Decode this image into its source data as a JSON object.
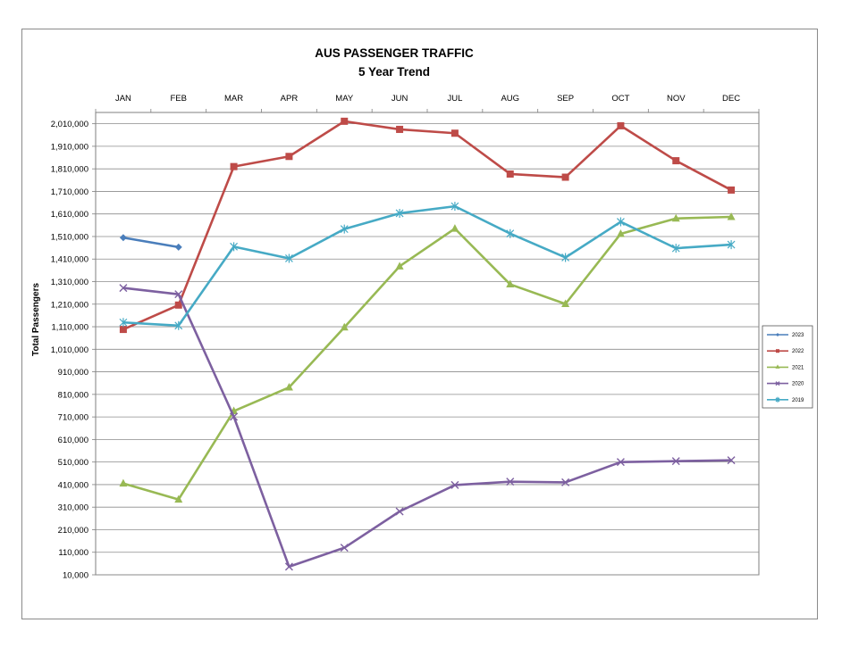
{
  "chart_data": {
    "type": "line",
    "title": "AUS PASSENGER TRAFFIC",
    "subtitle": "5 Year Trend",
    "xlabel": "",
    "ylabel": "Total Passengers",
    "categories": [
      "JAN",
      "FEB",
      "MAR",
      "APR",
      "MAY",
      "JUN",
      "JUL",
      "AUG",
      "SEP",
      "OCT",
      "NOV",
      "DEC"
    ],
    "yticks": [
      "2,010,000",
      "1,910,000",
      "1,810,000",
      "1,710,000",
      "1,610,000",
      "1,510,000",
      "1,410,000",
      "1,310,000",
      "1,210,000",
      "1,110,000",
      "1,010,000",
      "910,000",
      "810,000",
      "710,000",
      "610,000",
      "510,000",
      "410,000",
      "310,000",
      "210,000",
      "110,000",
      "10,000"
    ],
    "ylim": [
      10000,
      2010000
    ],
    "x_axis_position": "top",
    "grid": true,
    "legend_position": "right",
    "series": [
      {
        "name": "2023",
        "color": "#4a7ebb",
        "marker": "diamond",
        "values": [
          1505000,
          1463000,
          null,
          null,
          null,
          null,
          null,
          null,
          null,
          null,
          null,
          null
        ]
      },
      {
        "name": "2022",
        "color": "#be4b48",
        "marker": "square",
        "values": [
          1098000,
          1206000,
          1820000,
          1865000,
          2021000,
          1985000,
          1968000,
          1787000,
          1773000,
          2001000,
          1846000,
          1716000
        ]
      },
      {
        "name": "2021",
        "color": "#98b954",
        "marker": "triangle",
        "values": [
          415000,
          344000,
          736000,
          841000,
          1107000,
          1378000,
          1545000,
          1298000,
          1211000,
          1522000,
          1590000,
          1597000
        ]
      },
      {
        "name": "2020",
        "color": "#7d60a0",
        "marker": "x",
        "values": [
          1282000,
          1254000,
          711000,
          46000,
          130000,
          291000,
          408000,
          423000,
          420000,
          510000,
          514000,
          518000
        ]
      },
      {
        "name": "2019",
        "color": "#46aac5",
        "marker": "star",
        "values": [
          1129000,
          1115000,
          1465000,
          1413000,
          1543000,
          1613000,
          1644000,
          1523000,
          1417000,
          1575000,
          1458000,
          1474000
        ]
      }
    ]
  }
}
